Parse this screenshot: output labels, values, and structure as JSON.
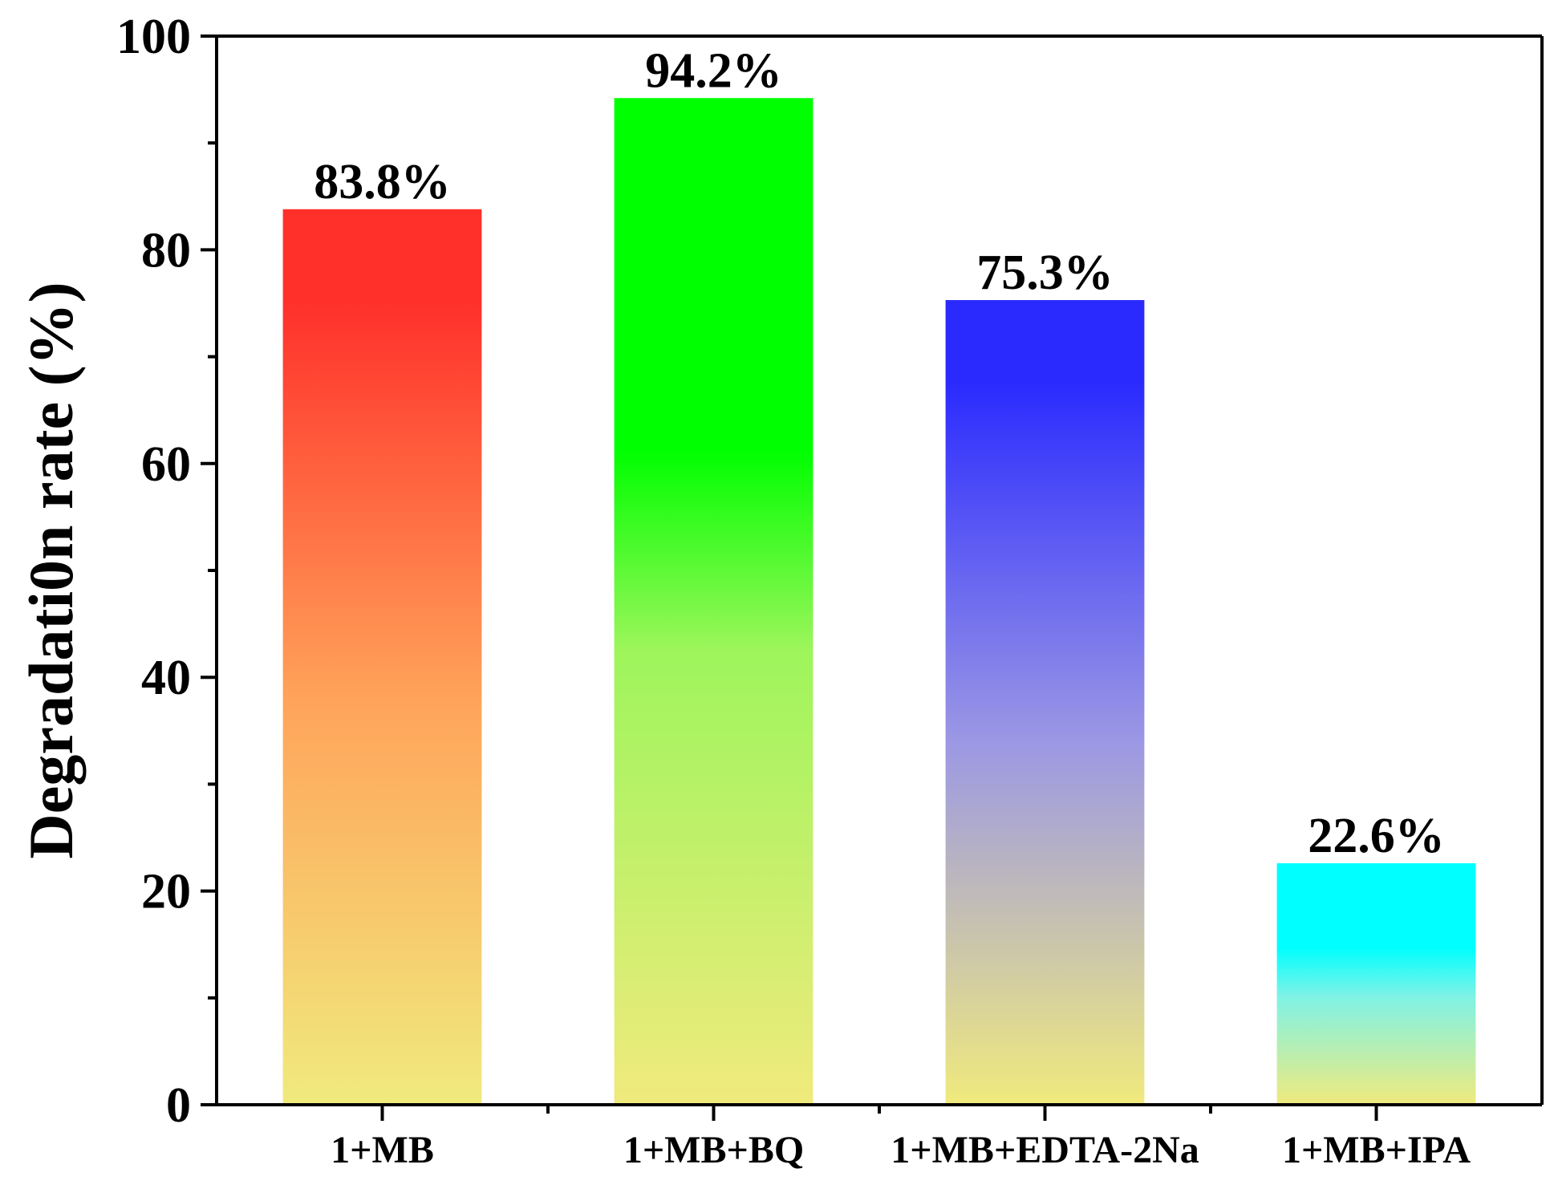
{
  "chart_data": {
    "type": "bar",
    "title": "",
    "xlabel": "",
    "ylabel": "Degradati0n rate (%)",
    "ylim": [
      0,
      100
    ],
    "major_ticks": [
      0,
      20,
      40,
      60,
      80,
      100
    ],
    "minor_ticks": [
      10,
      30,
      50,
      70,
      90
    ],
    "grid": false,
    "legend": "none",
    "categories": [
      "1+MB",
      "1+MB+BQ",
      "1+MB+EDTA-2Na",
      "1+MB+IPA"
    ],
    "values": [
      83.8,
      94.2,
      75.3,
      22.6
    ],
    "data_labels": [
      "83.8%",
      "94.2%",
      "75.3%",
      "22.6%"
    ],
    "colors": {
      "bar_bottom": "#f0ea7d",
      "bar_tops": [
        "#ff2f2a",
        "#00ff00",
        "#2a2aff",
        "#00ffff"
      ],
      "bar_mids": [
        "#ffa45a",
        "#9ef55c",
        "#9c98e4",
        "#7ff2e6"
      ],
      "axis": "#000000"
    }
  }
}
